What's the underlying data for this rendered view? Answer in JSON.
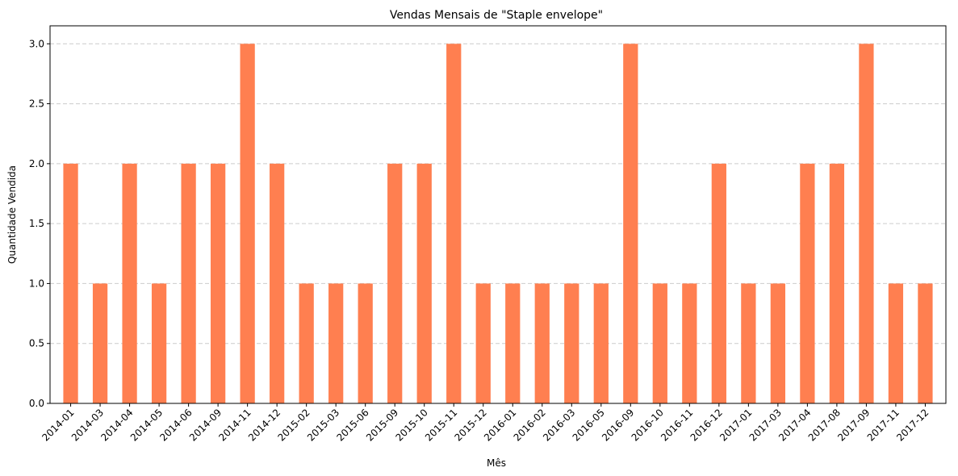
{
  "chart_data": {
    "type": "bar",
    "title": "Vendas Mensais de \"Staple envelope\"",
    "xlabel": "Mês",
    "ylabel": "Quantidade Vendida",
    "ylim": [
      0,
      3.15
    ],
    "yticks": [
      "0.0",
      "0.5",
      "1.0",
      "1.5",
      "2.0",
      "2.5",
      "3.0"
    ],
    "grid": "y-dashed",
    "bar_color": "#ff7f50",
    "categories": [
      "2014-01",
      "2014-03",
      "2014-04",
      "2014-05",
      "2014-06",
      "2014-09",
      "2014-11",
      "2014-12",
      "2015-02",
      "2015-03",
      "2015-06",
      "2015-09",
      "2015-10",
      "2015-11",
      "2015-12",
      "2016-01",
      "2016-02",
      "2016-03",
      "2016-05",
      "2016-09",
      "2016-10",
      "2016-11",
      "2016-12",
      "2017-01",
      "2017-03",
      "2017-04",
      "2017-08",
      "2017-09",
      "2017-11",
      "2017-12"
    ],
    "values": [
      2,
      1,
      2,
      1,
      2,
      2,
      3,
      2,
      1,
      1,
      1,
      2,
      2,
      3,
      1,
      1,
      1,
      1,
      1,
      3,
      1,
      1,
      2,
      1,
      1,
      2,
      2,
      3,
      1,
      1
    ]
  }
}
